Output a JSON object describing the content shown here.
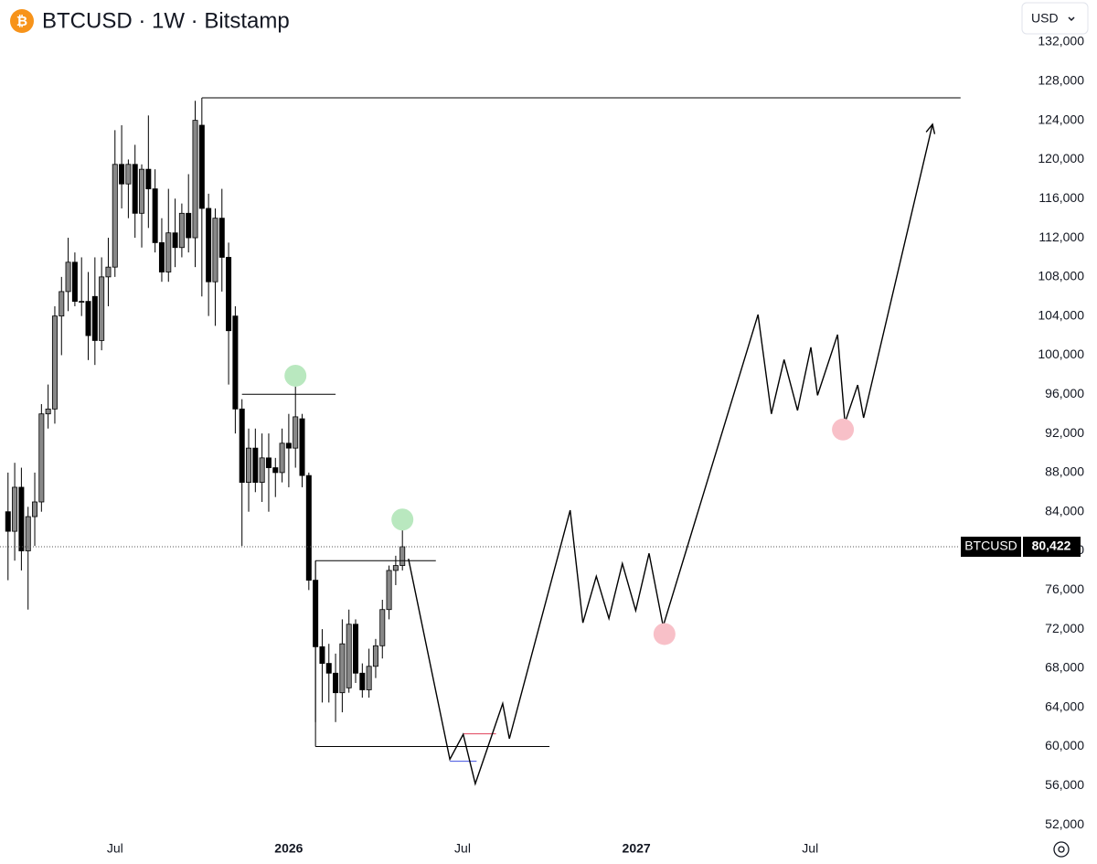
{
  "chart_data": {
    "type": "candlestick",
    "title": "BTCUSD · 1W · Bitstamp",
    "currency": "USD",
    "symbol": "BTCUSD",
    "last_price": {
      "value": 80422,
      "label": "80,422"
    },
    "xlim": [
      -43.2,
      108.6
    ],
    "ylim": [
      50800,
      136300
    ],
    "xticks": [
      {
        "value": -26,
        "label": "Jul"
      },
      {
        "value": 0,
        "label": "2026"
      },
      {
        "value": 26,
        "label": "Jul"
      },
      {
        "value": 52,
        "label": "2027"
      },
      {
        "value": 78,
        "label": "Jul"
      }
    ],
    "yticks": [
      {
        "value": 52000,
        "label": "52,000"
      },
      {
        "value": 56000,
        "label": "56,000"
      },
      {
        "value": 60000,
        "label": "60,000"
      },
      {
        "value": 64000,
        "label": "64,000"
      },
      {
        "value": 68000,
        "label": "68,000"
      },
      {
        "value": 72000,
        "label": "72,000"
      },
      {
        "value": 76000,
        "label": "76,000"
      },
      {
        "value": 80000,
        "label": "80,000"
      },
      {
        "value": 84000,
        "label": "84,000"
      },
      {
        "value": 88000,
        "label": "88,000"
      },
      {
        "value": 92000,
        "label": "92,000"
      },
      {
        "value": 96000,
        "label": "96,000"
      },
      {
        "value": 100000,
        "label": "100,000"
      },
      {
        "value": 104000,
        "label": "104,000"
      },
      {
        "value": 108000,
        "label": "108,000"
      },
      {
        "value": 112000,
        "label": "112,000"
      },
      {
        "value": 116000,
        "label": "116,000"
      },
      {
        "value": 120000,
        "label": "120,000"
      },
      {
        "value": 124000,
        "label": "124,000"
      },
      {
        "value": 128000,
        "label": "128,000"
      },
      {
        "value": 132000,
        "label": "132,000"
      }
    ],
    "up_color": "#888888",
    "down_color": "#000000",
    "x": [
      -42,
      -41,
      -40,
      -39,
      -38,
      -37,
      -36,
      -35,
      -34,
      -33,
      -32,
      -31,
      -30,
      -29,
      -28,
      -27,
      -26,
      -25,
      -24,
      -23,
      -22,
      -21,
      -20,
      -19,
      -18,
      -17,
      -16,
      -15,
      -14,
      -13,
      -12,
      -11,
      -10,
      -9,
      -8,
      -7,
      -6,
      -5,
      -4,
      -3,
      -2,
      -1,
      0,
      1,
      2,
      3,
      4,
      5,
      6,
      7,
      8,
      9,
      10,
      11,
      12,
      13,
      14,
      15,
      16,
      17
    ],
    "open": [
      84000,
      82000,
      86500,
      80000,
      83500,
      85000,
      94000,
      94500,
      104000,
      106500,
      109500,
      105500,
      105500,
      106000,
      101500,
      108000,
      109000,
      119500,
      117500,
      119500,
      114500,
      119000,
      117000,
      111500,
      108500,
      112500,
      111000,
      114500,
      112000,
      123500,
      115000,
      107500,
      114000,
      110000,
      104000,
      94500,
      87000,
      90500,
      87000,
      89500,
      88500,
      88000,
      91000,
      90500,
      93500,
      87700,
      77000,
      70200,
      68500,
      67500,
      65500,
      66000,
      72500,
      67500,
      65800,
      68200,
      70300,
      74000,
      78000,
      78500
    ],
    "high": [
      88000,
      89000,
      88500,
      84500,
      88000,
      95000,
      97000,
      105000,
      108000,
      112000,
      110500,
      110000,
      108500,
      110000,
      110000,
      112000,
      123000,
      123500,
      120000,
      121500,
      119500,
      124500,
      119000,
      114000,
      117000,
      116000,
      115500,
      118500,
      126000,
      126300,
      116500,
      115000,
      117000,
      111500,
      105000,
      95500,
      92500,
      92500,
      92000,
      92000,
      89500,
      92500,
      94000,
      97800,
      94000,
      88000,
      79000,
      72000,
      70500,
      69500,
      73000,
      74000,
      73000,
      68500,
      70000,
      71000,
      75000,
      78500,
      79500,
      82500
    ],
    "low": [
      77000,
      79000,
      78000,
      74000,
      80500,
      84000,
      92500,
      93000,
      100000,
      104500,
      105000,
      104000,
      99500,
      99000,
      100500,
      105000,
      108000,
      115000,
      114000,
      112000,
      111000,
      113000,
      110500,
      107500,
      107500,
      109000,
      110000,
      110500,
      109000,
      106000,
      104000,
      103000,
      106500,
      97000,
      92000,
      80500,
      84000,
      86000,
      85000,
      84000,
      85500,
      87000,
      86500,
      88500,
      86500,
      76000,
      62500,
      64500,
      64500,
      62500,
      63500,
      65500,
      66500,
      65000,
      65000,
      67000,
      69000,
      73000,
      76500,
      78000
    ],
    "close": [
      82000,
      86500,
      80000,
      83500,
      85000,
      94000,
      94500,
      104000,
      106500,
      109500,
      105500,
      105500,
      102000,
      101500,
      108000,
      109000,
      119500,
      117500,
      119500,
      114500,
      119000,
      117000,
      111500,
      108500,
      112500,
      111000,
      114500,
      112000,
      124000,
      115000,
      107500,
      114000,
      110000,
      102500,
      94500,
      87000,
      90500,
      87000,
      89500,
      88500,
      88000,
      91000,
      90500,
      93700,
      87700,
      77000,
      70200,
      68500,
      67500,
      65500,
      70500,
      72500,
      67500,
      65800,
      68200,
      70300,
      74000,
      78000,
      78500,
      80422
    ],
    "levels": [
      {
        "x": [
          -13,
          100.5
        ],
        "y": 126300
      },
      {
        "x": [
          -7,
          7
        ],
        "y": 96000
      },
      {
        "x": [
          4,
          22
        ],
        "y": 79000
      },
      {
        "x": [
          4,
          39
        ],
        "y": 60000
      },
      {
        "x": [
          26.1,
          31
        ],
        "y": 61300,
        "color": "#e0405a"
      },
      {
        "x": [
          24.1,
          28.1
        ],
        "y": 58500,
        "color": "#4050e0"
      }
    ],
    "box_edge": {
      "x": 4,
      "y": [
        79000,
        60000
      ]
    },
    "projection": {
      "x": [
        17.9,
        24.1,
        26.1,
        27.9,
        32.0,
        33.0,
        42.1,
        44.0,
        46.0,
        47.9,
        49.9,
        51.9,
        53.9,
        56.0,
        70.2,
        72.2,
        74.1,
        76.1,
        78.1,
        79.1,
        82.1,
        83.2,
        85.1,
        86.0,
        96.3
      ],
      "y": [
        79200,
        58700,
        61250,
        56200,
        64400,
        60800,
        84150,
        72650,
        77400,
        73100,
        78700,
        73900,
        79750,
        72300,
        104150,
        94000,
        99550,
        94350,
        100800,
        95900,
        102100,
        93100,
        96950,
        93600,
        123600
      ]
    },
    "markers": [
      {
        "x": 1,
        "y": 97900,
        "color": "#b9e8bf"
      },
      {
        "x": 17,
        "y": 83200,
        "color": "#b9e8bf"
      },
      {
        "x": 56.2,
        "y": 71500,
        "color": "#f8c0c8"
      },
      {
        "x": 82.9,
        "y": 92400,
        "color": "#f8c0c8"
      }
    ]
  }
}
